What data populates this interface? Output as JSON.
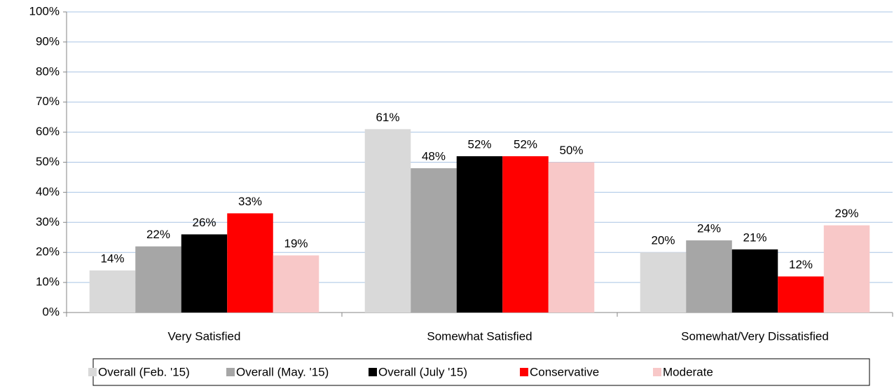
{
  "chart_data": {
    "type": "bar",
    "categories": [
      "Very Satisfied",
      "Somewhat Satisfied",
      "Somewhat/Very Dissatisfied"
    ],
    "series": [
      {
        "name": "Overall (Feb. '15)",
        "color": "#d9d9d9",
        "values": [
          14,
          61,
          20
        ],
        "value_labels": [
          "14%",
          "61%",
          "20%"
        ]
      },
      {
        "name": "Overall (May. '15)",
        "color": "#a6a6a6",
        "values": [
          22,
          48,
          24
        ],
        "value_labels": [
          "22%",
          "48%",
          "24%"
        ]
      },
      {
        "name": "Overall (July '15)",
        "color": "#000000",
        "values": [
          26,
          52,
          21
        ],
        "value_labels": [
          "26%",
          "52%",
          "21%"
        ]
      },
      {
        "name": "Conservative",
        "color": "#ff0000",
        "values": [
          33,
          52,
          12
        ],
        "value_labels": [
          "33%",
          "52%",
          "12%"
        ]
      },
      {
        "name": "Moderate",
        "color": "#f8c8c8",
        "values": [
          19,
          50,
          29
        ],
        "value_labels": [
          "19%",
          "50%",
          "29%"
        ]
      }
    ],
    "ylim": [
      0,
      100
    ],
    "yticks": [
      {
        "value": 0,
        "label": "0%"
      },
      {
        "value": 10,
        "label": "10%"
      },
      {
        "value": 20,
        "label": "20%"
      },
      {
        "value": 30,
        "label": "30%"
      },
      {
        "value": 40,
        "label": "40%"
      },
      {
        "value": 50,
        "label": "50%"
      },
      {
        "value": 60,
        "label": "60%"
      },
      {
        "value": 70,
        "label": "70%"
      },
      {
        "value": 80,
        "label": "80%"
      },
      {
        "value": 90,
        "label": "90%"
      },
      {
        "value": 100,
        "label": "100%"
      }
    ],
    "grid": true,
    "legend": "bottom"
  }
}
